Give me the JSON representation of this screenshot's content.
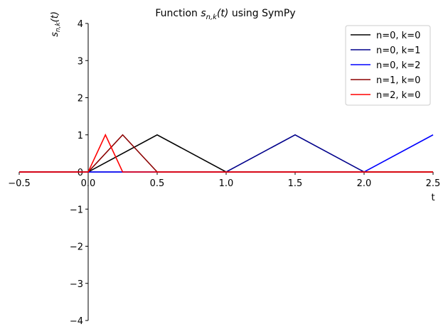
{
  "chart_data": {
    "type": "line",
    "title": "Function s_{n,k}(t) using SymPy",
    "title_parts": {
      "prefix": "Function ",
      "base": "s",
      "sub": "n,k",
      "arg": "(t)",
      "suffix": " using SymPy"
    },
    "xlabel": "t",
    "ylabel_parts": {
      "base": "s",
      "sub": "n,k",
      "arg": "(t)"
    },
    "xlim": [
      -0.5,
      2.5
    ],
    "ylim": [
      -4,
      4
    ],
    "xticks": [
      -0.5,
      0.0,
      0.5,
      1.0,
      1.5,
      2.0,
      2.5
    ],
    "xtick_labels": [
      "−0.5",
      "0.0",
      "0.5",
      "1.0",
      "1.5",
      "2.0",
      "2.5"
    ],
    "yticks": [
      -4,
      -3,
      -2,
      -1,
      0,
      1,
      2,
      3,
      4
    ],
    "ytick_labels": [
      "−4",
      "−3",
      "−2",
      "−1",
      "0",
      "1",
      "2",
      "3",
      "4"
    ],
    "grid": false,
    "legend_position": "top-right",
    "series": [
      {
        "name": "n=0, k=0",
        "color": "#000000",
        "x": [
          -0.5,
          0,
          0.5,
          1,
          2.5
        ],
        "y": [
          0,
          0,
          1,
          0,
          0
        ]
      },
      {
        "name": "n=0, k=1",
        "color": "#00008b",
        "x": [
          -0.5,
          1,
          1.5,
          2,
          2.5
        ],
        "y": [
          0,
          0,
          1,
          0,
          0
        ]
      },
      {
        "name": "n=0, k=2",
        "color": "#0000ff",
        "x": [
          -0.5,
          2,
          2.5
        ],
        "y": [
          0,
          0,
          1
        ]
      },
      {
        "name": "n=1, k=0",
        "color": "#8b0000",
        "x": [
          -0.5,
          0,
          0.25,
          0.5,
          2.5
        ],
        "y": [
          0,
          0,
          1,
          0,
          0
        ]
      },
      {
        "name": "n=2, k=0",
        "color": "#ff0000",
        "x": [
          -0.5,
          0,
          0.125,
          0.25,
          2.5
        ],
        "y": [
          0,
          0,
          1,
          0,
          0
        ]
      }
    ]
  }
}
